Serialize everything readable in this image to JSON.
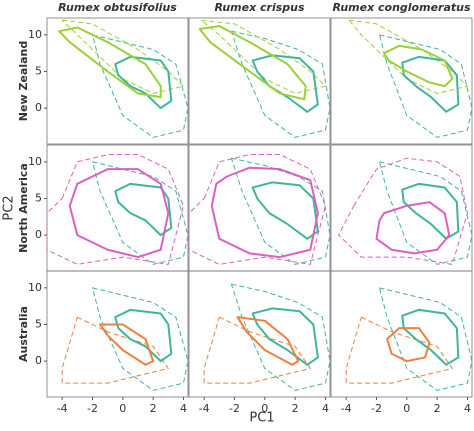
{
  "chart_data": {
    "type": "contour",
    "xlabel": "PC1",
    "ylabel": "PC2",
    "xlim": [
      -5,
      4.3
    ],
    "ylim": [
      -4.9,
      12.3
    ],
    "xticks": [
      -4,
      -2,
      0,
      2,
      4
    ],
    "yticks": [
      0,
      5,
      10
    ],
    "native_color": "#3fb59a",
    "columns": [
      {
        "name": "Rumex obtusifolius",
        "solid": {
          "x": [
            -0.5,
            0.5,
            2.5,
            3,
            3.2,
            2.5,
            1.5,
            0.5,
            -0.3
          ],
          "y": [
            6,
            7,
            6.5,
            5,
            1,
            0,
            2,
            3,
            4.5
          ]
        },
        "dashed": {
          "x": [
            -2,
            0,
            2,
            3.5,
            4.3,
            4,
            2,
            0,
            -1.5
          ],
          "y": [
            10,
            9,
            8,
            6,
            0,
            -3,
            -4,
            -1,
            6
          ]
        }
      },
      {
        "name": "Rumex crispus",
        "solid": {
          "x": [
            -0.8,
            0.5,
            2.3,
            3.2,
            3.5,
            2.8,
            1.5,
            0.3,
            -0.5
          ],
          "y": [
            6.5,
            7.2,
            6.8,
            5,
            0.5,
            -0.5,
            1.5,
            3,
            5
          ]
        },
        "dashed": {
          "x": [
            -2.2,
            0,
            2.2,
            3.8,
            4.3,
            4,
            2,
            0,
            -1.5
          ],
          "y": [
            10.5,
            9.5,
            8,
            6,
            0,
            -3,
            -4,
            -1,
            6
          ]
        }
      },
      {
        "name": "Rumex conglomeratus",
        "solid": {
          "x": [
            -0.3,
            0.8,
            2.5,
            3.3,
            3.4,
            2.6,
            1.6,
            0.6,
            -0.2
          ],
          "y": [
            6.2,
            7,
            6.5,
            4.5,
            0.5,
            -0.5,
            1.5,
            3,
            4.5
          ]
        },
        "dashed": {
          "x": [
            -1.8,
            0.2,
            2.2,
            3.6,
            4.3,
            4,
            2,
            0,
            -1.3
          ],
          "y": [
            10,
            9,
            8,
            6,
            0,
            -3,
            -4,
            -1,
            6
          ]
        }
      }
    ],
    "rows": [
      {
        "name": "New Zealand",
        "color": "#9ccf3a",
        "panels": [
          {
            "solid": {
              "x": [
                -4.2,
                -3,
                -1,
                1.5,
                2.5,
                2.5,
                1,
                -1,
                -3.5
              ],
              "y": [
                10.5,
                11,
                9,
                6,
                3,
                1.5,
                2,
                5,
                9
              ]
            },
            "dashed": {
              "x": [
                -4,
                -2,
                1,
                3,
                4,
                2,
                0,
                -3
              ],
              "y": [
                12,
                11.5,
                8,
                5,
                3,
                2,
                4,
                10
              ]
            }
          },
          {
            "solid": {
              "x": [
                -4.3,
                -3,
                -1,
                1.5,
                2.7,
                2.6,
                1,
                -1,
                -3.6
              ],
              "y": [
                10.8,
                11.2,
                9,
                6,
                3,
                1.2,
                2,
                5,
                9
              ]
            },
            "dashed": {
              "x": [
                -4.2,
                -2,
                1,
                3,
                4,
                2,
                0,
                -3
              ],
              "y": [
                12,
                11.5,
                8,
                5,
                3,
                2,
                4,
                10
              ]
            }
          },
          {
            "solid": {
              "x": [
                -1.5,
                -0.5,
                1,
                2.5,
                3,
                2.5,
                1.5,
                0,
                -1.2
              ],
              "y": [
                7.5,
                8.5,
                8,
                6.5,
                4,
                3,
                3.5,
                5,
                6.5
              ]
            },
            "dashed": {
              "x": [
                -3.8,
                -2,
                1,
                3,
                4,
                2,
                0,
                -3
              ],
              "y": [
                12,
                11.5,
                8,
                5,
                3,
                2,
                4,
                10
              ]
            }
          }
        ]
      },
      {
        "name": "North America",
        "color": "#dd5fc0",
        "panels": [
          {
            "solid": {
              "x": [
                -2,
                -1,
                1,
                2.5,
                3,
                2.5,
                1,
                -1,
                -3,
                -3.5,
                -3
              ],
              "y": [
                8,
                9,
                9,
                7,
                3,
                -2,
                -3,
                -2,
                0,
                4,
                7
              ]
            },
            "dashed": {
              "x": [
                -4,
                -3,
                -1,
                1,
                3,
                4,
                3,
                0,
                -3,
                -5,
                -5
              ],
              "y": [
                5,
                10,
                11,
                11,
                9,
                4,
                -4,
                -3,
                -4,
                -2,
                3
              ]
            }
          },
          {
            "solid": {
              "x": [
                -2.5,
                -1,
                1,
                3,
                3.5,
                3,
                1,
                -1,
                -3,
                -3.5,
                -3.2
              ],
              "y": [
                8,
                9.2,
                9,
                7.5,
                3,
                -2,
                -3,
                -2.5,
                -0.5,
                4,
                7
              ]
            },
            "dashed": {
              "x": [
                -4,
                -3,
                -1,
                1,
                3,
                4,
                3,
                0,
                -3,
                -5,
                -5
              ],
              "y": [
                5,
                10,
                11,
                11,
                9,
                4,
                -4,
                -3,
                -4,
                -2,
                3
              ]
            }
          },
          {
            "solid": {
              "x": [
                -1.5,
                0,
                1.5,
                2.5,
                2.8,
                2,
                0.5,
                -1,
                -2,
                -1.8
              ],
              "y": [
                3,
                4,
                4.5,
                3,
                0,
                -2,
                -2.5,
                -2,
                -0.5,
                2
              ]
            },
            "dashed": {
              "x": [
                -3.5,
                -2,
                0,
                2,
                3.5,
                4,
                3,
                0,
                -3,
                -4.5
              ],
              "y": [
                4,
                9,
                10.5,
                10,
                8,
                3,
                -4,
                -3,
                -3,
                0
              ]
            }
          }
        ]
      },
      {
        "name": "Australia",
        "color": "#ef8040",
        "panels": [
          {
            "solid": {
              "x": [
                -1.5,
                0,
                1.5,
                2,
                1.5,
                0,
                -1
              ],
              "y": [
                5,
                5,
                3,
                0,
                -0.5,
                1.5,
                3.5
              ]
            },
            "dashed": {
              "x": [
                -3,
                -1,
                2,
                3,
                1,
                -1,
                -4,
                -4
              ],
              "y": [
                6,
                4,
                2,
                -1,
                -2,
                -3,
                -3,
                -1
              ]
            }
          },
          {
            "solid": {
              "x": [
                -1.8,
                0,
                1.5,
                2.2,
                1.8,
                0,
                -1.2
              ],
              "y": [
                6,
                5.5,
                3,
                0,
                -0.5,
                1.5,
                4
              ]
            },
            "dashed": {
              "x": [
                -3,
                -1,
                2,
                3,
                1,
                -1,
                -4,
                -4
              ],
              "y": [
                6,
                4,
                2,
                -1,
                -2,
                -3,
                -3,
                -1
              ]
            }
          },
          {
            "solid": {
              "x": [
                -0.5,
                0.8,
                1.5,
                1.2,
                0,
                -1,
                -1.3
              ],
              "y": [
                4.5,
                4.5,
                2.5,
                0.5,
                0,
                1,
                3
              ]
            },
            "dashed": {
              "x": [
                -3,
                -1,
                2,
                3,
                1,
                -1,
                -4,
                -4
              ],
              "y": [
                6,
                4,
                2,
                -1,
                -2,
                -3,
                -3,
                -1
              ]
            }
          }
        ]
      }
    ]
  }
}
